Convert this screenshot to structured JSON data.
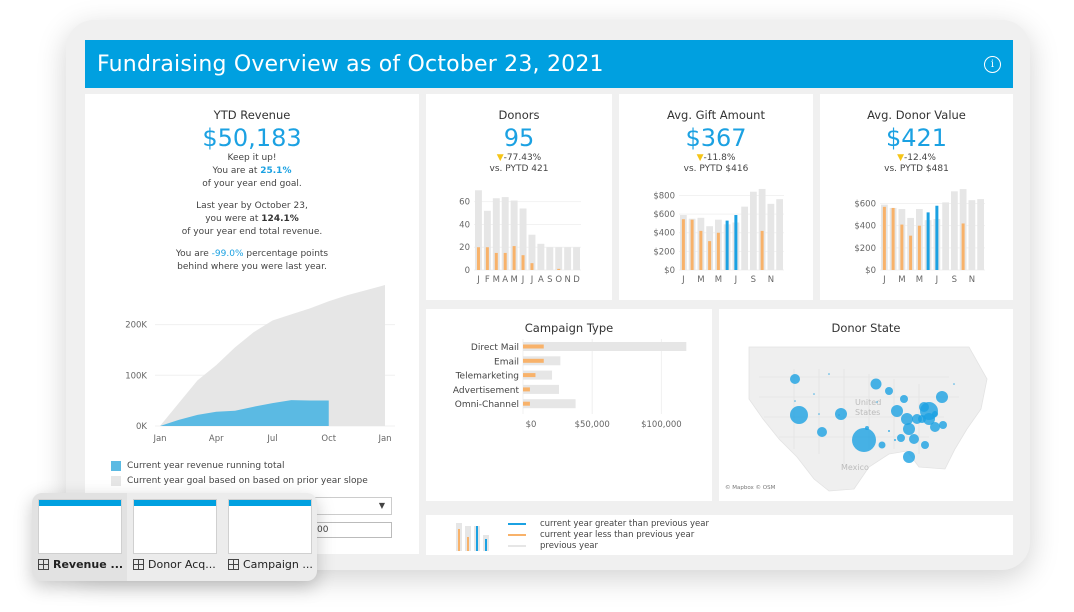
{
  "header": {
    "title": "Fundraising Overview as of October 23, 2021",
    "info_icon": "info-circle-icon"
  },
  "ytd": {
    "title": "YTD Revenue",
    "value": "$50,183",
    "line1": "Keep it up!",
    "line2_prefix": "You are at ",
    "line2_value": "25.1%",
    "line3": "of your year end goal.",
    "line4": "Last year by October 23,",
    "line5_prefix": "you were at ",
    "line5_value": "124.1%",
    "line6": "of your year end total revenue.",
    "line7_prefix": "You are ",
    "line7_value": "-99.0%",
    "line7_suffix": " percentage points",
    "line8": "behind where you were last year.",
    "legend": [
      {
        "label": "Current year revenue running total",
        "color": "#5bbae3"
      },
      {
        "label": "Current year goal based on based on prior year slope",
        "color": "#e6e6e6"
      }
    ]
  },
  "kpis": {
    "donors": {
      "title": "Donors",
      "value": "95",
      "delta": "-77.43%",
      "sub": "vs. PYTD 421"
    },
    "gift": {
      "title": "Avg. Gift Amount",
      "value": "$367",
      "delta": "-11.8%",
      "sub": "vs. PYTD $416"
    },
    "donor_value": {
      "title": "Avg. Donor Value",
      "value": "$421",
      "delta": "-12.4%",
      "sub": "vs. PYTD $481"
    }
  },
  "campaign": {
    "title": "Campaign Type"
  },
  "state": {
    "title": "Donor State",
    "attribution": "© Mapbox © OSM",
    "label_country": "United States",
    "label_mexico": "Mexico"
  },
  "legend_panel": {
    "items": [
      {
        "label": "current year greater than previous year",
        "color": "#1ba1e2"
      },
      {
        "label": "current year less than previous year",
        "color": "#f8b26a"
      },
      {
        "label": "previous year",
        "color": "#e6e6e6"
      }
    ]
  },
  "filters": {
    "select_value": "",
    "input_value": "00"
  },
  "thumbnails": [
    {
      "label": "Revenue ...",
      "active": true
    },
    {
      "label": "Donor Acq...",
      "active": false
    },
    {
      "label": "Campaign ...",
      "active": false
    }
  ],
  "colors": {
    "accent": "#00a0e0",
    "current_up": "#1ba1e2",
    "current_down": "#f8b26a",
    "previous": "#e6e6e6",
    "area_current": "#5bbae3"
  },
  "chart_data": [
    {
      "type": "area",
      "name": "ytd-revenue",
      "x": [
        "Jan",
        "Feb",
        "Mar",
        "Apr",
        "May",
        "Jun",
        "Jul",
        "Aug",
        "Sep",
        "Oct",
        "Nov",
        "Dec",
        "Jan"
      ],
      "xticks": [
        "Jan",
        "Apr",
        "Jul",
        "Oct",
        "Jan"
      ],
      "yticks": [
        "0K",
        "100K",
        "200K"
      ],
      "ylim": [
        0,
        280000
      ],
      "series": [
        {
          "name": "Current year goal based on based on prior year slope",
          "values": [
            0,
            45000,
            90000,
            120000,
            155000,
            185000,
            208000,
            220000,
            232000,
            246000,
            258000,
            268000,
            278000
          ]
        },
        {
          "name": "Current year revenue running total",
          "values": [
            0,
            12000,
            22000,
            28000,
            30000,
            38000,
            45000,
            51000,
            50183,
            50183,
            null,
            null,
            null
          ]
        }
      ]
    },
    {
      "type": "bar",
      "name": "donors",
      "categories": [
        "J",
        "F",
        "M",
        "A",
        "M",
        "J",
        "J",
        "A",
        "S",
        "O",
        "N",
        "D"
      ],
      "yticks": [
        "0",
        "20",
        "40",
        "60"
      ],
      "ylim": [
        0,
        72
      ],
      "series": [
        {
          "name": "previous year",
          "values": [
            70,
            52,
            63,
            64,
            61,
            54,
            31,
            23,
            20,
            20,
            20,
            20
          ]
        },
        {
          "name": "current year",
          "values": [
            20,
            20,
            15,
            15,
            21,
            13,
            6,
            0,
            0,
            1,
            0,
            0
          ]
        }
      ]
    },
    {
      "type": "bar",
      "name": "avg-gift-amount",
      "categories": [
        "J",
        "F",
        "M",
        "A",
        "M",
        "J",
        "J",
        "A",
        "S",
        "O",
        "N",
        "D"
      ],
      "xticks": [
        "J",
        "M",
        "M",
        "J",
        "S",
        "N"
      ],
      "yticks": [
        "$0",
        "$200",
        "$400",
        "$600",
        "$800"
      ],
      "ylim": [
        0,
        880
      ],
      "series": [
        {
          "name": "previous year",
          "values": [
            590,
            550,
            560,
            470,
            540,
            490,
            510,
            680,
            840,
            870,
            710,
            760
          ]
        },
        {
          "name": "current year",
          "values": [
            545,
            540,
            420,
            310,
            400,
            530,
            590,
            null,
            null,
            420,
            null,
            null
          ]
        }
      ]
    },
    {
      "type": "bar",
      "name": "avg-donor-value",
      "categories": [
        "J",
        "F",
        "M",
        "A",
        "M",
        "J",
        "J",
        "A",
        "S",
        "O",
        "N",
        "D"
      ],
      "xticks": [
        "J",
        "M",
        "M",
        "J",
        "S",
        "N"
      ],
      "yticks": [
        "$0",
        "$200",
        "$400",
        "$600"
      ],
      "ylim": [
        0,
        740
      ],
      "series": [
        {
          "name": "previous year",
          "values": [
            590,
            560,
            550,
            470,
            550,
            450,
            460,
            610,
            710,
            730,
            630,
            640
          ]
        },
        {
          "name": "current year",
          "values": [
            570,
            560,
            410,
            310,
            400,
            520,
            580,
            null,
            null,
            420,
            null,
            null
          ]
        }
      ]
    },
    {
      "type": "bar",
      "name": "campaign-type",
      "orientation": "horizontal",
      "categories": [
        "Direct Mail",
        "Email",
        "Telemarketing",
        "Advertisement",
        "Omni-Channel"
      ],
      "xticks": [
        "$0",
        "$50,000",
        "$100,000"
      ],
      "xlim": [
        0,
        125000
      ],
      "series": [
        {
          "name": "previous year",
          "values": [
            118000,
            27000,
            21000,
            26000,
            38000
          ]
        },
        {
          "name": "current year",
          "values": [
            15000,
            15000,
            9000,
            5000,
            5000
          ]
        }
      ]
    }
  ]
}
